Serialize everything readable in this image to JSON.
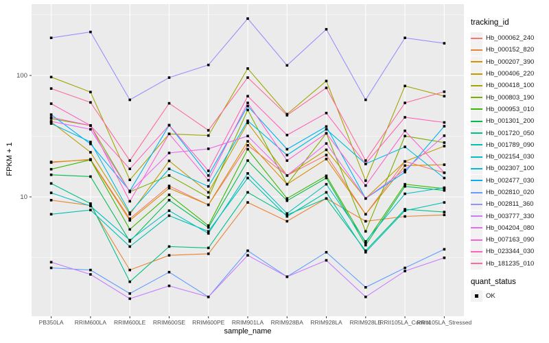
{
  "figure": {
    "background": "#FFFFFF",
    "panel_background": "#EBEBEB",
    "grid_color": "#FFFFFF",
    "tick_label_color": "#4D4D4D",
    "point_color": "#000000"
  },
  "legend": {
    "title": "tracking_id"
  },
  "legend_quant": {
    "title": "quant_status",
    "items": [
      {
        "label": "OK",
        "shape": "filled-square",
        "color": "#000000"
      }
    ]
  },
  "chart_data": {
    "type": "line",
    "title": "",
    "xlabel": "sample_name",
    "ylabel": "FPKM + 1",
    "y_scale": "log10",
    "ylim": [
      1.02,
      390
    ],
    "y_tick_labels": [
      "10",
      "100"
    ],
    "y_ticks": [
      10,
      100
    ],
    "y_minor_gridlines": [
      3.162,
      31.62,
      316.2
    ],
    "grid": true,
    "legend_position": "right",
    "point_shape": "filled-square",
    "x_categories": [
      "PB350LA",
      "RRIM600LA",
      "RRIM600LE",
      "RRIM600SE",
      "RRIM600PE",
      "RRIM901LA",
      "RRIM928BA",
      "RRIM928LA",
      "RRIM928LE",
      "RRII105LA_Control",
      "RRII105LA_Stressed"
    ],
    "series": [
      {
        "name": "Hb_000062_240",
        "color": "#F8766D",
        "values": [
          19.2,
          20.4,
          6.6,
          12.3,
          8.6,
          26.6,
          15.0,
          22.1,
          7.2,
          19.6,
          15.8
        ]
      },
      {
        "name": "Hb_000152_820",
        "color": "#EA8331",
        "values": [
          9.4,
          8.5,
          2.5,
          3.3,
          3.4,
          9.0,
          6.3,
          9.7,
          6.3,
          6.9,
          7.1
        ]
      },
      {
        "name": "Hb_000207_390",
        "color": "#D89000",
        "values": [
          19.4,
          20.2,
          6.4,
          11.8,
          8.6,
          28.7,
          12.7,
          20.5,
          7.2,
          18.1,
          18.4
        ]
      },
      {
        "name": "Hb_000406_220",
        "color": "#C09B00",
        "values": [
          41.4,
          23.3,
          7.2,
          19.8,
          10.9,
          40.7,
          15.0,
          24.4,
          9.7,
          19.6,
          26.2
        ]
      },
      {
        "name": "Hb_000418_100",
        "color": "#A3A500",
        "values": [
          97,
          73,
          13.8,
          33,
          32,
          114,
          48,
          90,
          13.6,
          82,
          67.5
        ]
      },
      {
        "name": "Hb_000803_190",
        "color": "#7CAE00",
        "values": [
          44.1,
          38.7,
          11.0,
          15.0,
          9.9,
          52,
          12.7,
          33.4,
          5.2,
          31.7,
          28
        ]
      },
      {
        "name": "Hb_000953_010",
        "color": "#39B600",
        "values": [
          16.9,
          20.2,
          5.4,
          10.4,
          5.8,
          24.7,
          9.7,
          14.9,
          4.2,
          12.7,
          11.7
        ]
      },
      {
        "name": "Hb_001301_200",
        "color": "#00BB4E",
        "values": [
          15.2,
          14.7,
          4.3,
          9.4,
          5.6,
          19.9,
          9.3,
          14.3,
          4.0,
          12.2,
          11.3
        ]
      },
      {
        "name": "Hb_001720_050",
        "color": "#00C087",
        "values": [
          12.9,
          8.8,
          2.0,
          3.9,
          3.8,
          10.9,
          7.1,
          9.7,
          3.6,
          7.9,
          7.5
        ]
      },
      {
        "name": "Hb_001789_090",
        "color": "#00C0AF",
        "values": [
          7.2,
          7.8,
          3.9,
          7.0,
          5.2,
          14.3,
          6.9,
          10.9,
          3.5,
          7.7,
          9.0
        ]
      },
      {
        "name": "Hb_002154_030",
        "color": "#00BFC4",
        "values": [
          10.8,
          8.4,
          4.4,
          7.7,
          5.0,
          15.6,
          7.3,
          12.7,
          4.3,
          10.6,
          11.9
        ]
      },
      {
        "name": "Hb_002307_100",
        "color": "#00BAE0",
        "values": [
          40.2,
          28.3,
          7.4,
          17.0,
          12.2,
          42.3,
          22.1,
          36.0,
          18.7,
          25.8,
          14.3
        ]
      },
      {
        "name": "Hb_002477_030",
        "color": "#00B0F6",
        "values": [
          47.6,
          27.3,
          11.2,
          38.9,
          15.0,
          56.0,
          24.7,
          38.0,
          9.7,
          16.0,
          38.2
        ]
      },
      {
        "name": "Hb_002810_020",
        "color": "#619CFF",
        "values": [
          2.6,
          2.5,
          1.6,
          2.4,
          1.5,
          3.6,
          2.2,
          3.5,
          1.8,
          2.6,
          3.7
        ]
      },
      {
        "name": "Hb_002811_360",
        "color": "#9590FF",
        "values": [
          204,
          228,
          63,
          96,
          122,
          294,
          121,
          240,
          63,
          204,
          184
        ]
      },
      {
        "name": "Hb_003777_330",
        "color": "#C77CFF",
        "values": [
          2.9,
          2.3,
          1.45,
          1.85,
          1.5,
          3.3,
          2.2,
          3.0,
          1.5,
          2.45,
          3.15
        ]
      },
      {
        "name": "Hb_004204_080",
        "color": "#E76BF3",
        "values": [
          41.9,
          36,
          11,
          23,
          24.9,
          31.7,
          15,
          27.5,
          9.7,
          16.7,
          31.9
        ]
      },
      {
        "name": "Hb_007163_090",
        "color": "#FD61D1",
        "values": [
          45.2,
          38.7,
          9.2,
          33,
          13.7,
          59.4,
          19.9,
          33.4,
          12.4,
          35,
          15.8
        ]
      },
      {
        "name": "Hb_023344_030",
        "color": "#FF62BC",
        "values": [
          58.6,
          38.7,
          17,
          39,
          16.4,
          67.5,
          32.3,
          49,
          18.7,
          45.2,
          41
        ]
      },
      {
        "name": "Hb_181235_010",
        "color": "#FF6A98",
        "values": [
          78,
          60,
          19.9,
          59,
          35.3,
          96,
          47,
          79,
          19.9,
          59.4,
          73.5
        ]
      }
    ]
  }
}
